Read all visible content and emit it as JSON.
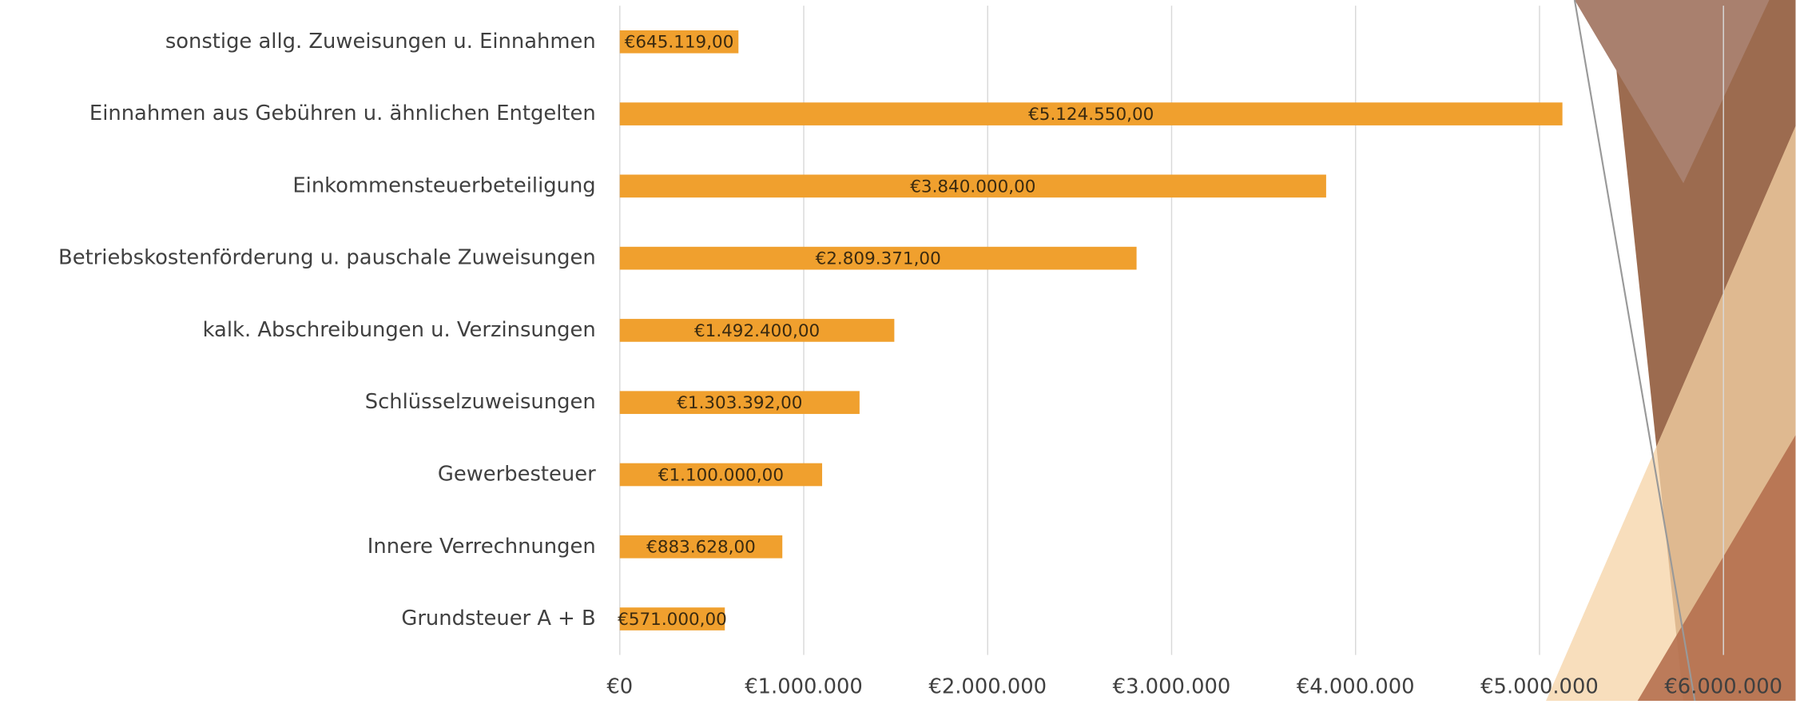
{
  "chart_data": {
    "type": "bar",
    "orientation": "horizontal",
    "categories": [
      "sonstige allg. Zuweisungen u. Einnahmen",
      "Einnahmen aus Gebühren u. ähnlichen Entgelten",
      "Einkommensteuerbeteiligung",
      "Betriebskostenförderung u. pauschale Zuweisungen",
      "kalk. Abschreibungen u. Verzinsungen",
      "Schlüsselzuweisungen",
      "Gewerbesteuer",
      "Innere Verrechnungen",
      "Grundsteuer A + B"
    ],
    "values": [
      645119,
      5124550,
      3840000,
      2809371,
      1492400,
      1303392,
      1100000,
      883628,
      571000
    ],
    "value_labels": [
      "€645.119,00",
      "€5.124.550,00",
      "€3.840.000,00",
      "€2.809.371,00",
      "€1.492.400,00",
      "€1.303.392,00",
      "€1.100.000,00",
      "€883.628,00",
      "€571.000,00"
    ],
    "color": "#f0a02e",
    "xlim": [
      0,
      6000000
    ],
    "xticks": [
      {
        "value": 0,
        "label": "€0"
      },
      {
        "value": 1000000,
        "label": "€1.000.000"
      },
      {
        "value": 2000000,
        "label": "€2.000.000"
      },
      {
        "value": 3000000,
        "label": "€3.000.000"
      },
      {
        "value": 4000000,
        "label": "€4.000.000"
      },
      {
        "value": 5000000,
        "label": "€5.000.000"
      },
      {
        "value": 6000000,
        "label": "€6.000.000"
      }
    ],
    "grid": true
  }
}
